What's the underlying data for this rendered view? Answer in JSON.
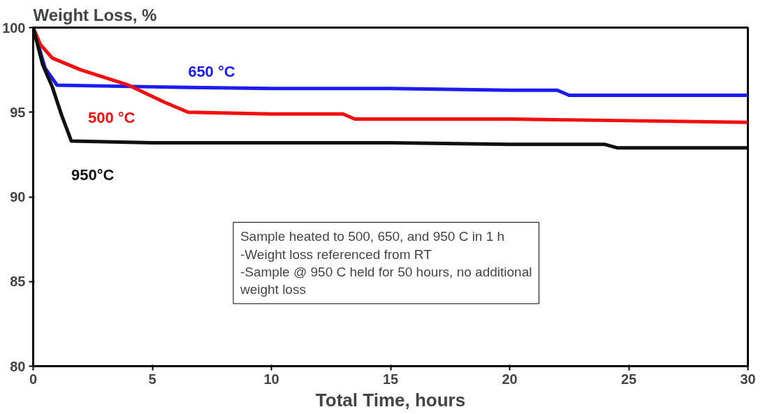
{
  "chart_data": {
    "type": "line",
    "ylabel": "Weight Loss, %",
    "xlabel": "Total Time, hours",
    "xlim": [
      0,
      30
    ],
    "ylim": [
      80,
      100
    ],
    "xticks": [
      0,
      5,
      10,
      15,
      20,
      25,
      30
    ],
    "yticks": [
      80,
      85,
      90,
      95,
      100
    ],
    "grid": false,
    "marker": "none",
    "line_style": "solid",
    "series": [
      {
        "name": "650 °C",
        "color": "#1c1cf0",
        "x": [
          0,
          0.5,
          1.0,
          5,
          10,
          15,
          20,
          22,
          22.5,
          30
        ],
        "values": [
          100,
          97.6,
          96.6,
          96.5,
          96.4,
          96.4,
          96.3,
          96.3,
          96.0,
          96.0
        ]
      },
      {
        "name": "500 °C",
        "color": "#f01010",
        "x": [
          0,
          0.3,
          0.8,
          2,
          4,
          5.5,
          6.5,
          10,
          13,
          13.5,
          20,
          25,
          30
        ],
        "values": [
          100,
          99.0,
          98.2,
          97.5,
          96.6,
          95.6,
          95.0,
          94.9,
          94.9,
          94.6,
          94.6,
          94.5,
          94.4
        ]
      },
      {
        "name": "950°C",
        "color": "#101010",
        "x": [
          0,
          0.4,
          0.8,
          1.2,
          1.6,
          5,
          10,
          15,
          20,
          24,
          24.5,
          30
        ],
        "values": [
          100,
          97.8,
          96.5,
          94.8,
          93.3,
          93.2,
          93.2,
          93.2,
          93.1,
          93.1,
          92.9,
          92.9
        ]
      }
    ],
    "annotations": [
      "Sample heated to 500, 650, and 950 C in 1 h\n-Weight loss referenced from RT\n-Sample @ 950 C held for 50 hours, no additional\nweight loss"
    ]
  }
}
